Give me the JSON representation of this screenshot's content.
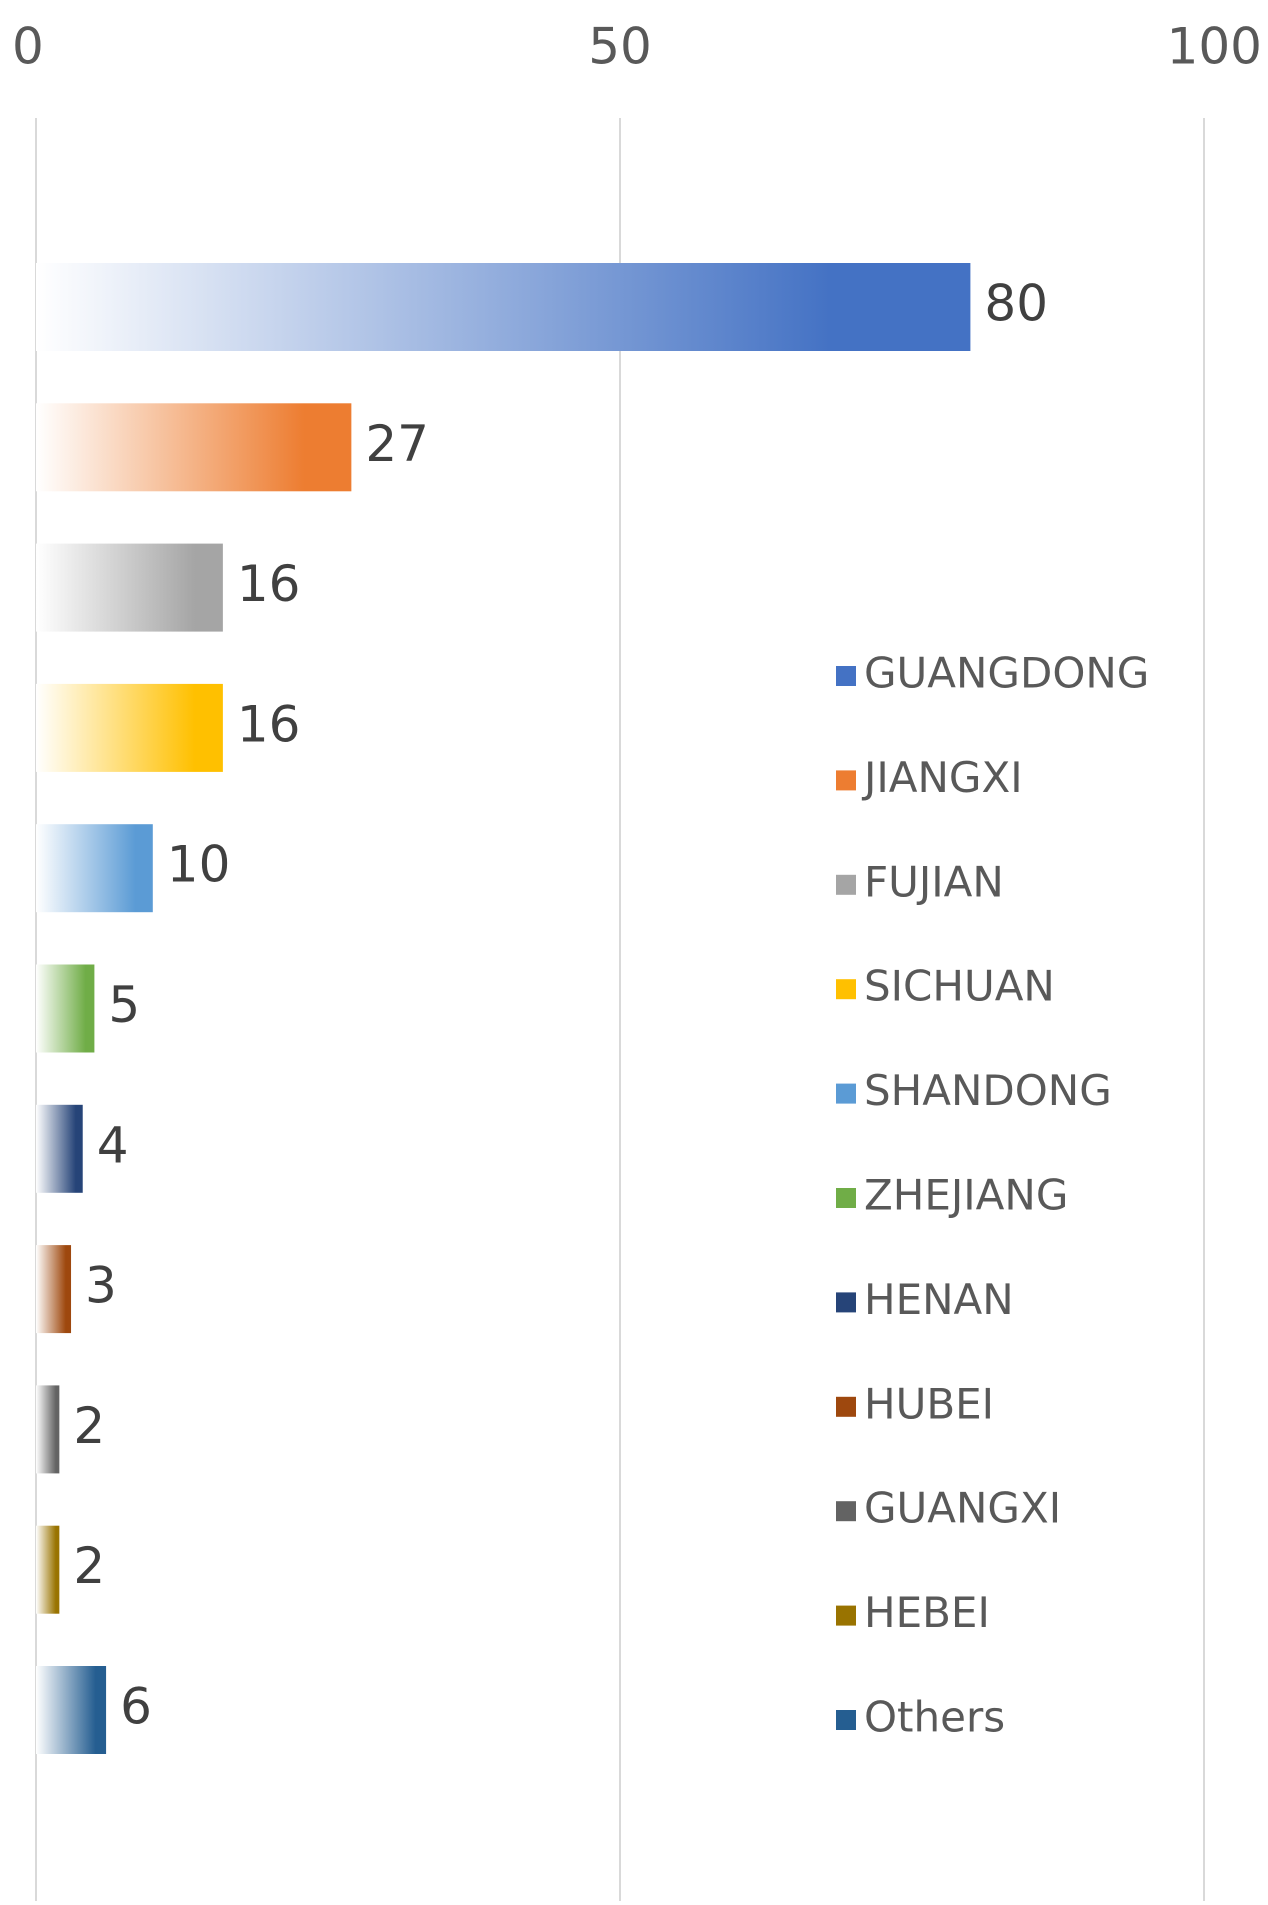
{
  "chart_data": {
    "type": "barh",
    "categories": [
      "GUANGDONG",
      "JIANGXI",
      "FUJIAN",
      "SICHUAN",
      "SHANDONG",
      "ZHEJIANG",
      "HENAN",
      "HUBEI",
      "GUANGXI",
      "HEBEI",
      "Others"
    ],
    "values": [
      80,
      27,
      16,
      16,
      10,
      5,
      4,
      3,
      2,
      2,
      6
    ],
    "colors": [
      "#4472c4",
      "#ed7d31",
      "#a5a5a5",
      "#ffc000",
      "#5b9bd5",
      "#70ad47",
      "#264478",
      "#9e480e",
      "#636363",
      "#997300",
      "#255e91"
    ],
    "xlim": [
      0,
      100
    ],
    "xticks": [
      0,
      50,
      100
    ],
    "grid": true,
    "legend": "right"
  }
}
